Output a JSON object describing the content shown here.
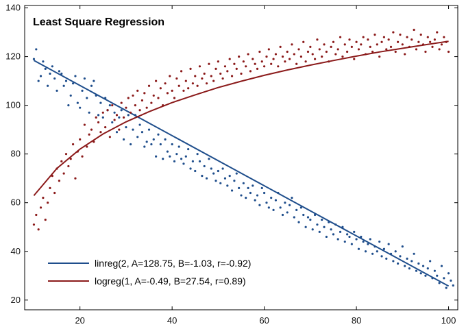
{
  "chart_data": {
    "type": "scatter",
    "title": "Least Square Regression",
    "xlabel": "",
    "ylabel": "",
    "xlim": [
      8,
      102
    ],
    "ylim": [
      16,
      141
    ],
    "x_ticks": [
      20,
      40,
      60,
      80,
      100
    ],
    "y_ticks": [
      20,
      40,
      60,
      80,
      100,
      120,
      140
    ],
    "grid": false,
    "legend_position": "bottom-left",
    "series": [
      {
        "name": "linreg(2, A=128.75, B=-1.03, r=-0.92)",
        "kind": "scatter",
        "color": "#1f4e8c",
        "x_start": 10,
        "x_step": 0.5,
        "values": [
          119,
          123,
          110,
          112,
          118,
          115,
          108,
          113,
          116,
          111,
          106,
          114,
          113,
          108,
          110,
          100,
          104,
          109,
          112,
          101,
          99,
          106,
          111,
          103,
          97,
          108,
          110,
          104,
          96,
          101,
          95,
          103,
          98,
          100,
          93,
          97,
          89,
          95,
          98,
          86,
          91,
          96,
          84,
          90,
          96,
          87,
          92,
          89,
          83,
          85,
          90,
          84,
          86,
          79,
          88,
          84,
          78,
          86,
          81,
          79,
          84,
          77,
          80,
          83,
          78,
          76,
          79,
          82,
          74,
          77,
          73,
          80,
          77,
          71,
          75,
          70,
          78,
          74,
          72,
          69,
          73,
          68,
          74,
          70,
          67,
          71,
          65,
          69,
          72,
          66,
          63,
          68,
          62,
          66,
          64,
          67,
          61,
          63,
          59,
          66,
          64,
          60,
          58,
          62,
          57,
          61,
          64,
          58,
          55,
          60,
          56,
          59,
          62,
          54,
          57,
          52,
          58,
          55,
          50,
          54,
          53,
          49,
          55,
          51,
          48,
          53,
          50,
          46,
          52,
          49,
          47,
          51,
          45,
          48,
          50,
          44,
          47,
          46,
          43,
          48,
          45,
          41,
          46,
          44,
          40,
          43,
          45,
          39,
          42,
          40,
          44,
          38,
          41,
          37,
          43,
          39,
          36,
          40,
          35,
          38,
          42,
          34,
          37,
          33,
          36,
          39,
          32,
          35,
          31,
          34,
          30,
          33,
          36,
          29,
          32,
          30,
          27,
          34,
          29,
          25,
          31,
          28,
          26
        ]
      },
      {
        "name": "logreg(1, A=-0.49, B=27.54, r=0.89)",
        "kind": "scatter",
        "color": "#8b1a1a",
        "x_start": 10,
        "x_step": 0.5,
        "values": [
          51,
          55,
          49,
          58,
          62,
          53,
          60,
          66,
          71,
          64,
          74,
          69,
          77,
          72,
          80,
          75,
          78,
          84,
          70,
          81,
          86,
          79,
          92,
          83,
          88,
          90,
          85,
          95,
          93,
          89,
          97,
          91,
          98,
          87,
          100,
          94,
          96,
          90,
          101,
          95,
          99,
          103,
          97,
          104,
          100,
          106,
          98,
          102,
          105,
          99,
          108,
          101,
          104,
          110,
          103,
          107,
          100,
          109,
          105,
          112,
          106,
          103,
          111,
          108,
          114,
          106,
          110,
          107,
          115,
          109,
          112,
          108,
          116,
          111,
          113,
          109,
          117,
          112,
          110,
          115,
          118,
          113,
          111,
          116,
          114,
          119,
          112,
          117,
          115,
          120,
          113,
          118,
          116,
          121,
          114,
          119,
          117,
          115,
          122,
          118,
          116,
          120,
          123,
          117,
          119,
          121,
          116,
          124,
          120,
          118,
          122,
          119,
          125,
          121,
          117,
          123,
          120,
          126,
          118,
          122,
          124,
          121,
          119,
          127,
          123,
          120,
          125,
          122,
          118,
          124,
          126,
          121,
          123,
          128,
          120,
          125,
          122,
          127,
          124,
          119,
          126,
          123,
          125,
          128,
          121,
          127,
          124,
          122,
          129,
          125,
          120,
          126,
          128,
          123,
          127,
          124,
          130,
          122,
          126,
          129,
          125,
          121,
          128,
          124,
          127,
          131,
          123,
          126,
          129,
          125,
          122,
          128,
          126,
          124,
          127,
          130,
          123,
          125,
          128,
          126,
          122
        ]
      },
      {
        "name": "linreg fit",
        "kind": "line",
        "color": "#1f4e8c",
        "x": [
          10,
          100
        ],
        "values": [
          118.45,
          25.75
        ]
      },
      {
        "name": "logreg fit",
        "kind": "line",
        "color": "#8b1a1a",
        "x": [
          10,
          15,
          20,
          25,
          30,
          35,
          40,
          45,
          50,
          55,
          60,
          65,
          70,
          75,
          80,
          85,
          90,
          95,
          100
        ],
        "values": [
          62.9,
          74.1,
          82.0,
          88.2,
          93.2,
          97.4,
          101.1,
          104.3,
          107.3,
          109.9,
          112.3,
          114.5,
          116.5,
          118.4,
          120.2,
          121.9,
          123.4,
          124.9,
          126.3
        ]
      }
    ],
    "legend": [
      {
        "label": "linreg(2, A=128.75, B=-1.03, r=-0.92)",
        "color": "#1f4e8c"
      },
      {
        "label": "logreg(1, A=-0.49, B=27.54, r=0.89)",
        "color": "#8b1a1a"
      }
    ]
  }
}
